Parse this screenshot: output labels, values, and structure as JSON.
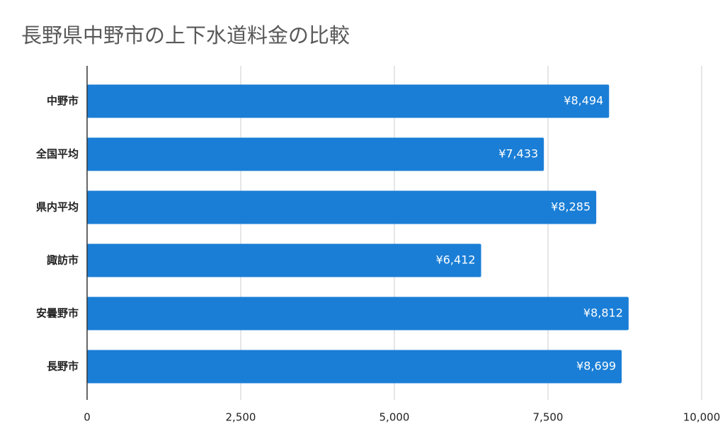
{
  "chart_data": {
    "type": "bar",
    "orientation": "horizontal",
    "title": "長野県中野市の上下水道料金の比較",
    "categories": [
      "中野市",
      "全国平均",
      "県内平均",
      "諏訪市",
      "安曇野市",
      "長野市"
    ],
    "values": [
      8494,
      7433,
      8285,
      6412,
      8812,
      8699
    ],
    "value_labels": [
      "¥8,494",
      "¥7,433",
      "¥8,285",
      "¥6,412",
      "¥8,812",
      "¥8,699"
    ],
    "color": "#1a7ed6",
    "xlim": [
      0,
      10000
    ],
    "xticks": [
      0,
      {
        "value": 2500,
        "label": "2,500"
      },
      {
        "value": 5000,
        "label": "5,000"
      },
      {
        "value": 7500,
        "label": "7,500"
      },
      {
        "value": 10000,
        "label": "10,000"
      }
    ],
    "grid": true
  }
}
